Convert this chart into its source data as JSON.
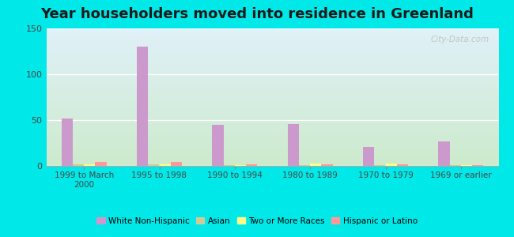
{
  "title": "Year householders moved into residence in Greenland",
  "categories": [
    "1999 to March\n2000",
    "1995 to 1998",
    "1990 to 1994",
    "1980 to 1989",
    "1970 to 1979",
    "1969 or earlier"
  ],
  "series": {
    "White Non-Hispanic": [
      52,
      130,
      45,
      46,
      21,
      27
    ],
    "Asian": [
      2,
      2,
      1,
      1,
      1,
      1
    ],
    "Two or More Races": [
      2,
      2,
      1,
      3,
      3,
      1
    ],
    "Hispanic or Latino": [
      4,
      4,
      2,
      2,
      2,
      1
    ]
  },
  "colors": {
    "White Non-Hispanic": "#cc99cc",
    "Asian": "#cccc99",
    "Two or More Races": "#ffff88",
    "Hispanic or Latino": "#ff9999"
  },
  "ylim": [
    0,
    150
  ],
  "yticks": [
    0,
    50,
    100,
    150
  ],
  "bar_width": 0.15,
  "background_color": "#00e8e8",
  "plot_bg_top": "#e0f0f8",
  "plot_bg_bottom": "#cceacc",
  "grid_color": "#ffffff",
  "title_fontsize": 13,
  "watermark": "City-Data.com"
}
